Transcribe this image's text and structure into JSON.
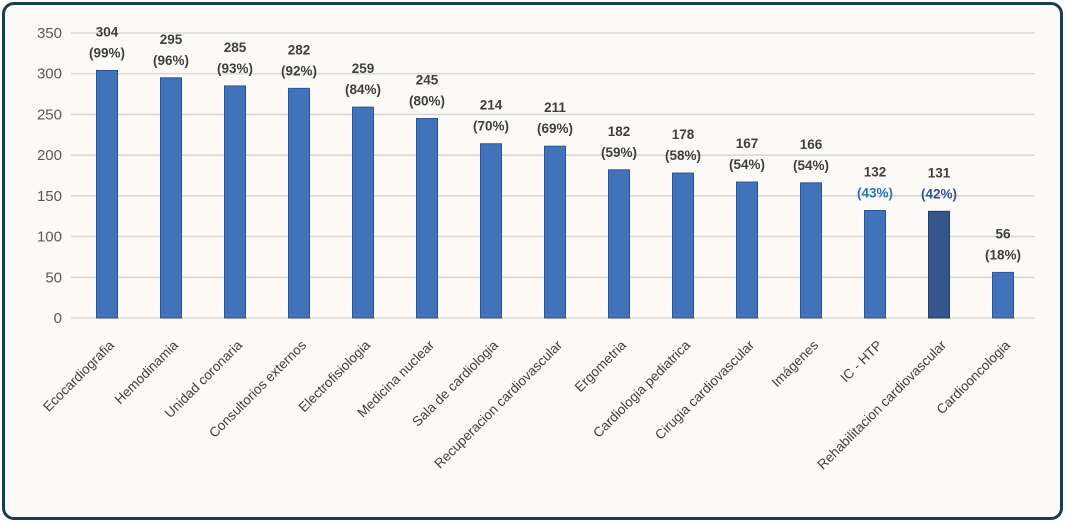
{
  "window": {
    "background": "#ffffff",
    "frame_border_color": "#1b3c58",
    "frame_background": "#fcfaf7"
  },
  "chart_data": {
    "type": "bar",
    "title": "",
    "xlabel": "",
    "ylabel": "",
    "ylim": [
      0,
      350
    ],
    "yticks": [
      0,
      50,
      100,
      150,
      200,
      250,
      300,
      350
    ],
    "grid": true,
    "legend": null,
    "gridline_color": "#d9d9d9",
    "axis_tick_color": "#595959",
    "value_label_color": "#3f3f3f",
    "category_label_color": "#404040",
    "bar_color": "#4173bd",
    "bar_stroke": "#2f5597",
    "bars": [
      {
        "category": "Ecocardiografia",
        "value": 304,
        "percent": "(99%)"
      },
      {
        "category": "Hemodinamia",
        "value": 295,
        "percent": "(96%)"
      },
      {
        "category": "Unidad coronaria",
        "value": 285,
        "percent": "(93%)"
      },
      {
        "category": "Consultorios externos",
        "value": 282,
        "percent": "(92%)"
      },
      {
        "category": "Electrofisiologia",
        "value": 259,
        "percent": "(84%)"
      },
      {
        "category": "Medicina nuclear",
        "value": 245,
        "percent": "(80%)"
      },
      {
        "category": "Sala de cardiologia",
        "value": 214,
        "percent": "(70%)"
      },
      {
        "category": "Recuperacion cardiovascular",
        "value": 211,
        "percent": "(69%)"
      },
      {
        "category": "Ergometria",
        "value": 182,
        "percent": "(59%)"
      },
      {
        "category": "Cardiologia pediatrica",
        "value": 178,
        "percent": "(58%)"
      },
      {
        "category": "Cirugia cardiovascular",
        "value": 167,
        "percent": "(54%)"
      },
      {
        "category": "Imágenes",
        "value": 166,
        "percent": "(54%)"
      },
      {
        "category": "IC - HTP",
        "value": 132,
        "percent": "(43%)",
        "percent_color": "#2e75b6"
      },
      {
        "category": "Rehabilitacion cardiovascular",
        "value": 131,
        "percent": "(42%)",
        "percent_color": "#2f5496",
        "bar_color": "#35568c",
        "bar_stroke": "#273f66"
      },
      {
        "category": "Cardiooncologia",
        "value": 56,
        "percent": "(18%)"
      }
    ]
  }
}
